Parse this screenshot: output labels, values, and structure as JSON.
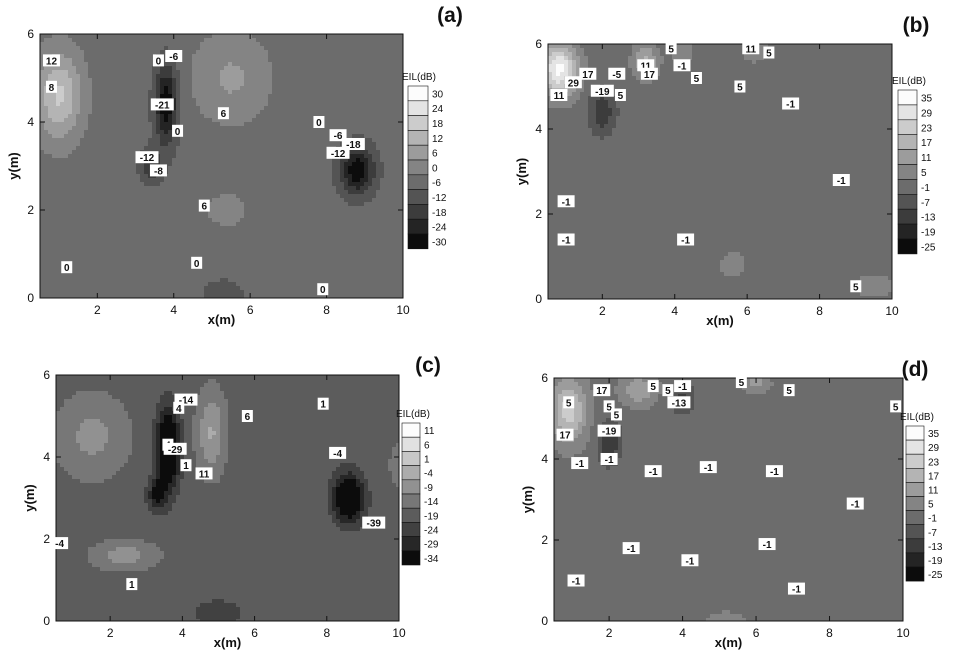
{
  "chart_data": [
    {
      "panel": "(a)",
      "type": "heatmap",
      "xlabel": "x(m)",
      "ylabel": "y(m)",
      "xlim": [
        0.5,
        10
      ],
      "ylim": [
        0,
        6
      ],
      "xticks": [
        2,
        4,
        6,
        8,
        10
      ],
      "yticks": [
        0,
        2,
        4,
        6
      ],
      "legend": {
        "title": "EIL(dB)",
        "levels": [
          30,
          24,
          18,
          12,
          6,
          0,
          -6,
          -12,
          -18,
          -24,
          -30
        ]
      },
      "features": [
        {
          "x": 1.0,
          "y": 4.6,
          "amp": 22,
          "sx": 0.6,
          "sy": 1.0
        },
        {
          "x": 3.8,
          "y": 4.4,
          "amp": -26,
          "sx": 0.3,
          "sy": 0.9
        },
        {
          "x": 3.4,
          "y": 3.0,
          "amp": -14,
          "sx": 0.3,
          "sy": 0.4
        },
        {
          "x": 8.8,
          "y": 2.9,
          "amp": -26,
          "sx": 0.45,
          "sy": 0.55
        },
        {
          "x": 5.5,
          "y": 5.0,
          "amp": 10,
          "sx": 1.0,
          "sy": 1.0
        },
        {
          "x": 5.4,
          "y": 2.0,
          "amp": 8,
          "sx": 0.5,
          "sy": 0.35
        },
        {
          "x": 5.3,
          "y": 0.1,
          "amp": -9,
          "sx": 0.5,
          "sy": 0.3
        }
      ],
      "contour_labels": [
        {
          "text": "12",
          "x": 0.8,
          "y": 5.4
        },
        {
          "text": "8",
          "x": 0.8,
          "y": 4.8
        },
        {
          "text": "0",
          "x": 3.6,
          "y": 5.4
        },
        {
          "text": "-6",
          "x": 4.0,
          "y": 5.5
        },
        {
          "text": "-21",
          "x": 3.7,
          "y": 4.4
        },
        {
          "text": "0",
          "x": 4.1,
          "y": 3.8
        },
        {
          "text": "-12",
          "x": 3.3,
          "y": 3.2
        },
        {
          "text": "-8",
          "x": 3.6,
          "y": 2.9
        },
        {
          "text": "6",
          "x": 5.3,
          "y": 4.2
        },
        {
          "text": "0",
          "x": 7.8,
          "y": 4.0
        },
        {
          "text": "-6",
          "x": 8.3,
          "y": 3.7
        },
        {
          "text": "-18",
          "x": 8.7,
          "y": 3.5
        },
        {
          "text": "-12",
          "x": 8.3,
          "y": 3.3
        },
        {
          "text": "6",
          "x": 4.8,
          "y": 2.1
        },
        {
          "text": "0",
          "x": 1.2,
          "y": 0.7
        },
        {
          "text": "0",
          "x": 4.6,
          "y": 0.8
        },
        {
          "text": "0",
          "x": 7.9,
          "y": 0.2
        }
      ]
    },
    {
      "panel": "(b)",
      "type": "heatmap",
      "xlabel": "x(m)",
      "ylabel": "y(m)",
      "xlim": [
        0.5,
        10
      ],
      "ylim": [
        0,
        6
      ],
      "xticks": [
        2,
        4,
        6,
        8,
        10
      ],
      "yticks": [
        0,
        2,
        4,
        6
      ],
      "legend": {
        "title": "EIL(dB)",
        "levels": [
          35,
          29,
          23,
          17,
          11,
          5,
          -1,
          -7,
          -13,
          -19,
          -25
        ]
      },
      "features": [
        {
          "x": 0.8,
          "y": 5.4,
          "amp": 35,
          "sx": 0.5,
          "sy": 0.6
        },
        {
          "x": 2.0,
          "y": 4.4,
          "amp": -14,
          "sx": 0.35,
          "sy": 0.5
        },
        {
          "x": 3.2,
          "y": 5.6,
          "amp": 16,
          "sx": 0.35,
          "sy": 0.4
        },
        {
          "x": 4.2,
          "y": 5.8,
          "amp": 8,
          "sx": 0.3,
          "sy": 0.3
        },
        {
          "x": 6.2,
          "y": 5.9,
          "amp": 10,
          "sx": 0.3,
          "sy": 0.3
        },
        {
          "x": 5.6,
          "y": 0.8,
          "amp": 8,
          "sx": 0.35,
          "sy": 0.3
        },
        {
          "x": 9.5,
          "y": 0.3,
          "amp": 7,
          "sx": 0.6,
          "sy": 0.3
        }
      ],
      "contour_labels": [
        {
          "text": "11",
          "x": 0.8,
          "y": 4.8
        },
        {
          "text": "29",
          "x": 1.2,
          "y": 5.1
        },
        {
          "text": "17",
          "x": 1.6,
          "y": 5.3
        },
        {
          "text": "-5",
          "x": 2.4,
          "y": 5.3
        },
        {
          "text": "-19",
          "x": 2.0,
          "y": 4.9
        },
        {
          "text": "5",
          "x": 2.5,
          "y": 4.8
        },
        {
          "text": "11",
          "x": 3.2,
          "y": 5.5
        },
        {
          "text": "17",
          "x": 3.3,
          "y": 5.3
        },
        {
          "text": "5",
          "x": 3.9,
          "y": 5.9
        },
        {
          "text": "-1",
          "x": 4.2,
          "y": 5.5
        },
        {
          "text": "5",
          "x": 4.6,
          "y": 5.2
        },
        {
          "text": "5",
          "x": 5.8,
          "y": 5.0
        },
        {
          "text": "11",
          "x": 6.1,
          "y": 5.9
        },
        {
          "text": "5",
          "x": 6.6,
          "y": 5.8
        },
        {
          "text": "-1",
          "x": 7.2,
          "y": 4.6
        },
        {
          "text": "-1",
          "x": 1.0,
          "y": 2.3
        },
        {
          "text": "-1",
          "x": 1.0,
          "y": 1.4
        },
        {
          "text": "-1",
          "x": 4.3,
          "y": 1.4
        },
        {
          "text": "-1",
          "x": 8.6,
          "y": 2.8
        },
        {
          "text": "5",
          "x": 9.0,
          "y": 0.3
        }
      ]
    },
    {
      "panel": "(c)",
      "type": "heatmap",
      "xlabel": "x(m)",
      "ylabel": "y(m)",
      "xlim": [
        0.5,
        10
      ],
      "ylim": [
        0,
        6
      ],
      "xticks": [
        2,
        4,
        6,
        8,
        10
      ],
      "yticks": [
        0,
        2,
        4,
        6
      ],
      "legend": {
        "title": "EIL(dB)",
        "levels": [
          11,
          6,
          1,
          -4,
          -9,
          -14,
          -19,
          -24,
          -29,
          -34
        ]
      },
      "features": [
        {
          "x": 1.5,
          "y": 4.5,
          "amp": 9,
          "sx": 1.0,
          "sy": 1.0
        },
        {
          "x": 3.6,
          "y": 4.2,
          "amp": -28,
          "sx": 0.3,
          "sy": 0.9
        },
        {
          "x": 3.3,
          "y": 3.1,
          "amp": -14,
          "sx": 0.25,
          "sy": 0.4
        },
        {
          "x": 4.8,
          "y": 4.6,
          "amp": 13,
          "sx": 0.4,
          "sy": 1.0
        },
        {
          "x": 2.4,
          "y": 1.6,
          "amp": 10,
          "sx": 0.9,
          "sy": 0.35
        },
        {
          "x": 8.6,
          "y": 3.0,
          "amp": -26,
          "sx": 0.4,
          "sy": 0.55
        },
        {
          "x": 10.2,
          "y": 3.8,
          "amp": 10,
          "sx": 0.4,
          "sy": 0.5
        },
        {
          "x": 5.0,
          "y": 0.2,
          "amp": -7,
          "sx": 0.6,
          "sy": 0.3
        }
      ],
      "contour_labels": [
        {
          "text": "4",
          "x": 3.6,
          "y": 4.3
        },
        {
          "text": "-29",
          "x": 3.8,
          "y": 4.2
        },
        {
          "text": "-14",
          "x": 4.1,
          "y": 5.4
        },
        {
          "text": "4",
          "x": 3.9,
          "y": 5.2
        },
        {
          "text": "1",
          "x": 4.1,
          "y": 3.8
        },
        {
          "text": "6",
          "x": 5.8,
          "y": 5.0
        },
        {
          "text": "11",
          "x": 4.6,
          "y": 3.6
        },
        {
          "text": "1",
          "x": 7.9,
          "y": 5.3
        },
        {
          "text": "-4",
          "x": 8.3,
          "y": 4.1
        },
        {
          "text": "-39",
          "x": 9.3,
          "y": 2.4
        },
        {
          "text": "-4",
          "x": 0.6,
          "y": 1.9
        },
        {
          "text": "1",
          "x": 2.6,
          "y": 0.9
        }
      ]
    },
    {
      "panel": "(d)",
      "type": "heatmap",
      "xlabel": "x(m)",
      "ylabel": "y(m)",
      "xlim": [
        0.5,
        10
      ],
      "ylim": [
        0,
        6
      ],
      "xticks": [
        2,
        4,
        6,
        8,
        10
      ],
      "yticks": [
        0,
        2,
        4,
        6
      ],
      "legend": {
        "title": "EIL(dB)",
        "levels": [
          35,
          29,
          23,
          17,
          11,
          5,
          -1,
          -7,
          -13,
          -19,
          -25
        ]
      },
      "features": [
        {
          "x": 0.9,
          "y": 5.2,
          "amp": 24,
          "sx": 0.5,
          "sy": 0.8
        },
        {
          "x": 2.0,
          "y": 4.4,
          "amp": -15,
          "sx": 0.3,
          "sy": 0.5
        },
        {
          "x": 2.8,
          "y": 5.7,
          "amp": 14,
          "sx": 0.5,
          "sy": 0.4
        },
        {
          "x": 4.0,
          "y": 5.5,
          "amp": -10,
          "sx": 0.3,
          "sy": 0.4
        },
        {
          "x": 6.0,
          "y": 5.9,
          "amp": 10,
          "sx": 0.4,
          "sy": 0.3
        },
        {
          "x": 5.2,
          "y": 0.0,
          "amp": 7,
          "sx": 0.6,
          "sy": 0.25
        }
      ],
      "contour_labels": [
        {
          "text": "5",
          "x": 0.9,
          "y": 5.4
        },
        {
          "text": "17",
          "x": 0.8,
          "y": 4.6
        },
        {
          "text": "17",
          "x": 1.8,
          "y": 5.7
        },
        {
          "text": "5",
          "x": 2.0,
          "y": 5.3
        },
        {
          "text": "5",
          "x": 2.2,
          "y": 5.1
        },
        {
          "text": "-19",
          "x": 2.0,
          "y": 4.7
        },
        {
          "text": "-1",
          "x": 2.0,
          "y": 4.0
        },
        {
          "text": "5",
          "x": 3.2,
          "y": 5.8
        },
        {
          "text": "5",
          "x": 3.6,
          "y": 5.7
        },
        {
          "text": "-1",
          "x": 4.0,
          "y": 5.8
        },
        {
          "text": "-13",
          "x": 3.9,
          "y": 5.4
        },
        {
          "text": "5",
          "x": 5.6,
          "y": 5.9
        },
        {
          "text": "5",
          "x": 6.9,
          "y": 5.7
        },
        {
          "text": "5",
          "x": 9.8,
          "y": 5.3
        },
        {
          "text": "-1",
          "x": 1.2,
          "y": 3.9
        },
        {
          "text": "-1",
          "x": 3.2,
          "y": 3.7
        },
        {
          "text": "-1",
          "x": 4.7,
          "y": 3.8
        },
        {
          "text": "-1",
          "x": 6.5,
          "y": 3.7
        },
        {
          "text": "-1",
          "x": 8.7,
          "y": 2.9
        },
        {
          "text": "-1",
          "x": 2.6,
          "y": 1.8
        },
        {
          "text": "-1",
          "x": 4.2,
          "y": 1.5
        },
        {
          "text": "-1",
          "x": 6.3,
          "y": 1.9
        },
        {
          "text": "-1",
          "x": 1.1,
          "y": 1.0
        },
        {
          "text": "-1",
          "x": 7.1,
          "y": 0.8
        }
      ]
    }
  ]
}
